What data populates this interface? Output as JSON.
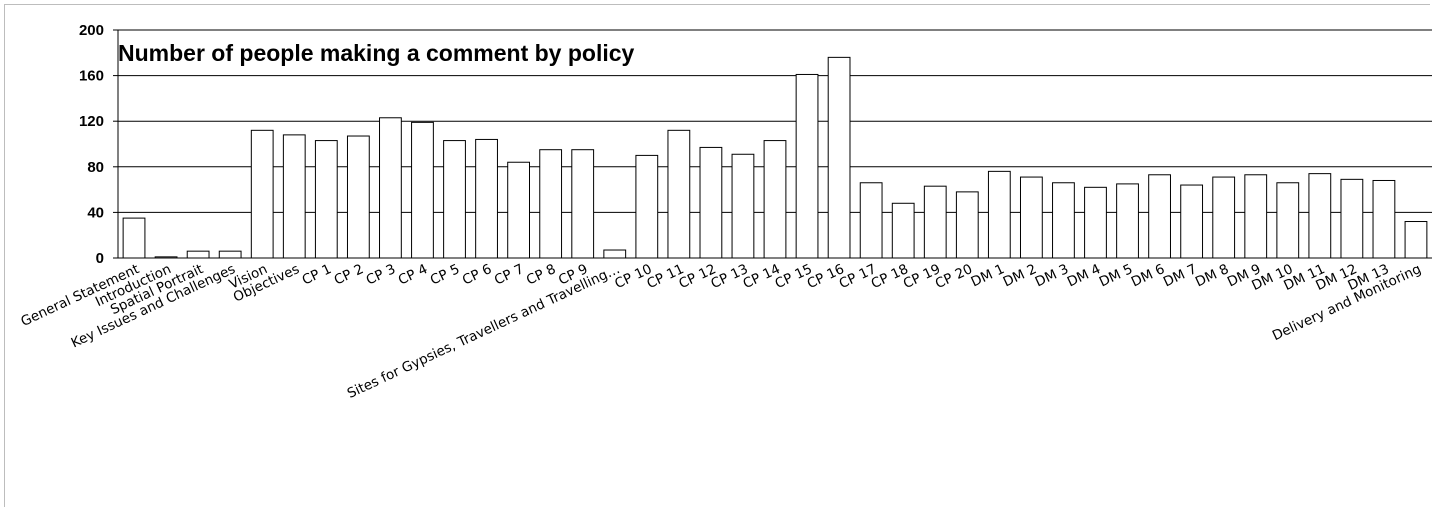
{
  "chart_data": {
    "type": "bar",
    "title": "Number of people making a comment by policy",
    "xlabel": "",
    "ylabel": "",
    "ylim": [
      0,
      200
    ],
    "yticks": [
      0,
      40,
      80,
      120,
      160,
      200
    ],
    "grid": true,
    "bar_color": "#ffffff",
    "highlight_color": "#000000",
    "highlight_category": "CP 6",
    "categories": [
      "General Statement",
      "Introduction",
      "Spatial Portrait",
      "Key Issues and Challenges",
      "Vision",
      "Objectives",
      "CP  1",
      "CP  2",
      "CP  3",
      "CP  4",
      "CP  5",
      "CP  6",
      "CP  7",
      "CP  8",
      "CP  9",
      "Sites for Gypsies, Travellers and Travelling…",
      "CP 10",
      "CP 11",
      "CP 12",
      "CP 13",
      "CP 14",
      "CP 15",
      "CP 16",
      "CP 17",
      "CP 18",
      "CP 19",
      "CP 20",
      "DM  1",
      "DM  2",
      "DM  3",
      "DM  4",
      "DM  5",
      "DM  6",
      "DM  7",
      "DM  8",
      "DM  9",
      "DM 10",
      "DM 11",
      "DM 12",
      "DM 13",
      "Delivery and Monitoring"
    ],
    "values": [
      35,
      1,
      6,
      6,
      112,
      108,
      103,
      107,
      123,
      119,
      103,
      104,
      84,
      95,
      95,
      7,
      90,
      112,
      97,
      91,
      103,
      161,
      176,
      66,
      48,
      63,
      58,
      76,
      71,
      66,
      62,
      65,
      73,
      64,
      71,
      73,
      66,
      74,
      69,
      68,
      32
    ]
  }
}
